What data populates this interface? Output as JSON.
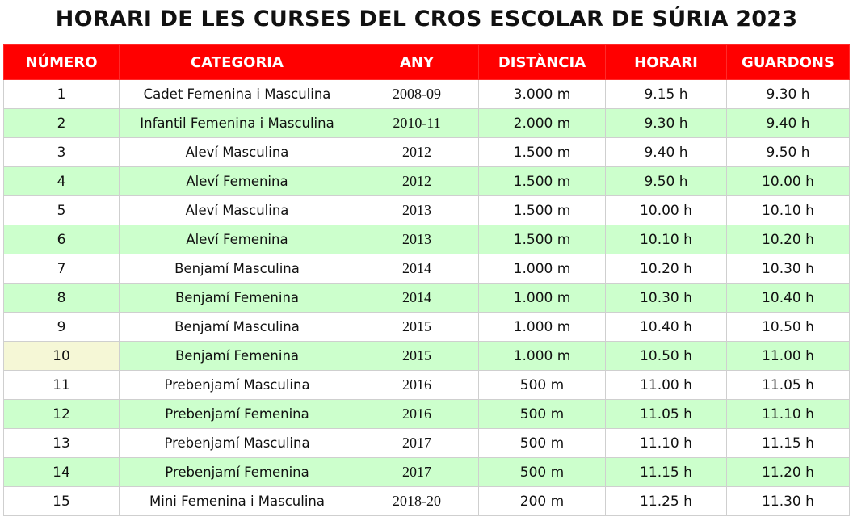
{
  "title": "HORARI DE LES CURSES DEL CROS ESCOLAR DE SÚRIA 2023",
  "colors": {
    "header_bg": "#ff0000",
    "header_text": "#ffffff",
    "row_alt": "#ccffcc",
    "row_plain": "#ffffff",
    "selected_cell": "#f5f7d6"
  },
  "table": {
    "headers": [
      "NÚMERO",
      "CATEGORIA",
      "ANY",
      "DISTÀNCIA",
      "HORARI",
      "GUARDONS"
    ],
    "rows": [
      [
        "1",
        "Cadet Femenina i Masculina",
        "2008-09",
        "3.000 m",
        "9.15 h",
        "9.30 h"
      ],
      [
        "2",
        "Infantil Femenina i Masculina",
        "2010-11",
        "2.000 m",
        "9.30 h",
        "9.40 h"
      ],
      [
        "3",
        "Aleví Masculina",
        "2012",
        "1.500 m",
        "9.40 h",
        "9.50 h"
      ],
      [
        "4",
        "Aleví Femenina",
        "2012",
        "1.500 m",
        "9.50 h",
        "10.00 h"
      ],
      [
        "5",
        "Aleví Masculina",
        "2013",
        "1.500 m",
        "10.00 h",
        "10.10 h"
      ],
      [
        "6",
        "Aleví Femenina",
        "2013",
        "1.500 m",
        "10.10 h",
        "10.20 h"
      ],
      [
        "7",
        "Benjamí Masculina",
        "2014",
        "1.000 m",
        "10.20 h",
        "10.30 h"
      ],
      [
        "8",
        "Benjamí Femenina",
        "2014",
        "1.000 m",
        "10.30 h",
        "10.40 h"
      ],
      [
        "9",
        "Benjamí Masculina",
        "2015",
        "1.000 m",
        "10.40 h",
        "10.50 h"
      ],
      [
        "10",
        "Benjamí Femenina",
        "2015",
        "1.000 m",
        "10.50 h",
        "11.00 h"
      ],
      [
        "11",
        "Prebenjamí Masculina",
        "2016",
        "500 m",
        "11.00 h",
        "11.05 h"
      ],
      [
        "12",
        "Prebenjamí Femenina",
        "2016",
        "500 m",
        "11.05 h",
        "11.10 h"
      ],
      [
        "13",
        "Prebenjamí Masculina",
        "2017",
        "500 m",
        "11.10 h",
        "11.15 h"
      ],
      [
        "14",
        "Prebenjamí Femenina",
        "2017",
        "500 m",
        "11.15 h",
        "11.20 h"
      ],
      [
        "15",
        "Mini Femenina i Masculina",
        "2018-20",
        "200 m",
        "11.25 h",
        "11.30 h"
      ]
    ]
  }
}
